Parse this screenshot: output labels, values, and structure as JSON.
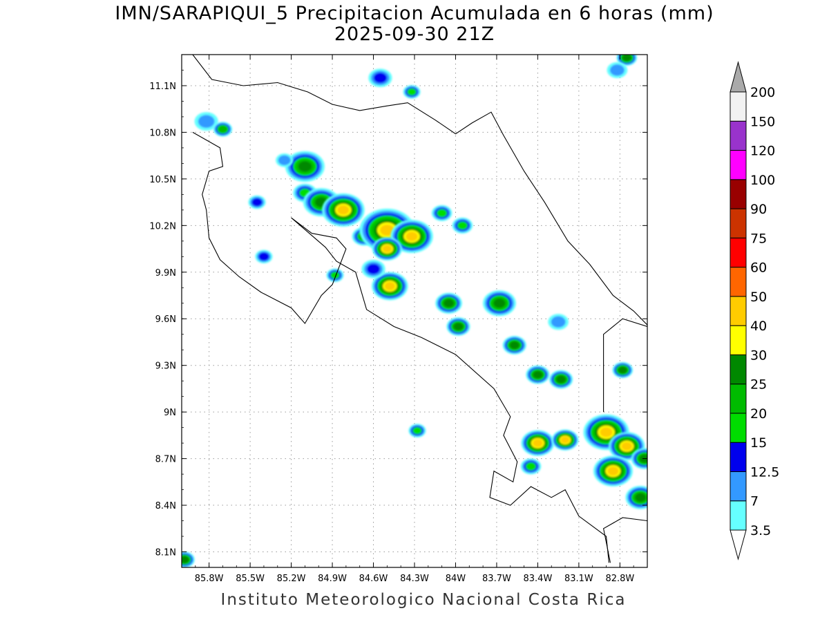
{
  "title": {
    "line1": "IMN/SARAPIQUI_5 Precipitacion Acumulada en 6 horas (mm)",
    "line2": "2025-09-30 21Z"
  },
  "footer": "Instituto Meteorologico Nacional Costa Rica",
  "map": {
    "lon_range": [
      -86.0,
      -82.6
    ],
    "lat_range": [
      8.0,
      11.3
    ],
    "x_ticks": [
      {
        "value": -85.8,
        "label": "85.8W"
      },
      {
        "value": -85.5,
        "label": "85.5W"
      },
      {
        "value": -85.2,
        "label": "85.2W"
      },
      {
        "value": -84.9,
        "label": "84.9W"
      },
      {
        "value": -84.6,
        "label": "84.6W"
      },
      {
        "value": -84.3,
        "label": "84.3W"
      },
      {
        "value": -84.0,
        "label": "84W"
      },
      {
        "value": -83.7,
        "label": "83.7W"
      },
      {
        "value": -83.4,
        "label": "83.4W"
      },
      {
        "value": -83.1,
        "label": "83.1W"
      },
      {
        "value": -82.8,
        "label": "82.8W"
      }
    ],
    "y_ticks": [
      {
        "value": 8.1,
        "label": "8.1N"
      },
      {
        "value": 8.4,
        "label": "8.4N"
      },
      {
        "value": 8.7,
        "label": "8.7N"
      },
      {
        "value": 9.0,
        "label": "9N"
      },
      {
        "value": 9.3,
        "label": "9.3N"
      },
      {
        "value": 9.6,
        "label": "9.6N"
      },
      {
        "value": 9.9,
        "label": "9.9N"
      },
      {
        "value": 10.2,
        "label": "10.2N"
      },
      {
        "value": 10.5,
        "label": "10.5N"
      },
      {
        "value": 10.8,
        "label": "10.8N"
      },
      {
        "value": 11.1,
        "label": "11.1N"
      }
    ],
    "grid": "dotted",
    "coastlines": [
      [
        [
          -85.92,
          11.3
        ],
        [
          -85.78,
          11.14
        ],
        [
          -85.55,
          11.1
        ],
        [
          -85.3,
          11.12
        ],
        [
          -85.08,
          11.06
        ],
        [
          -84.9,
          10.98
        ],
        [
          -84.7,
          10.94
        ],
        [
          -84.5,
          10.97
        ],
        [
          -84.35,
          10.99
        ],
        [
          -84.15,
          10.88
        ],
        [
          -84.0,
          10.79
        ],
        [
          -83.88,
          10.86
        ],
        [
          -83.74,
          10.93
        ],
        [
          -83.65,
          10.78
        ],
        [
          -83.5,
          10.55
        ],
        [
          -83.35,
          10.35
        ],
        [
          -83.18,
          10.1
        ],
        [
          -83.02,
          9.95
        ],
        [
          -82.85,
          9.75
        ],
        [
          -82.7,
          9.65
        ],
        [
          -82.6,
          9.56
        ]
      ],
      [
        [
          -85.92,
          10.8
        ],
        [
          -85.72,
          10.7
        ],
        [
          -85.7,
          10.58
        ],
        [
          -85.8,
          10.55
        ],
        [
          -85.85,
          10.4
        ],
        [
          -85.82,
          10.3
        ],
        [
          -85.8,
          10.12
        ],
        [
          -85.72,
          9.98
        ],
        [
          -85.58,
          9.87
        ],
        [
          -85.42,
          9.77
        ],
        [
          -85.2,
          9.67
        ],
        [
          -85.1,
          9.57
        ],
        [
          -84.98,
          9.75
        ],
        [
          -84.9,
          9.82
        ],
        [
          -84.8,
          10.05
        ],
        [
          -84.87,
          10.12
        ],
        [
          -85.05,
          10.15
        ],
        [
          -85.2,
          10.25
        ],
        [
          -84.95,
          10.06
        ],
        [
          -84.87,
          9.97
        ],
        [
          -84.73,
          9.9
        ],
        [
          -84.65,
          9.66
        ],
        [
          -84.45,
          9.55
        ],
        [
          -84.25,
          9.48
        ],
        [
          -84.0,
          9.37
        ],
        [
          -83.72,
          9.15
        ],
        [
          -83.6,
          8.97
        ],
        [
          -83.65,
          8.85
        ],
        [
          -83.55,
          8.68
        ],
        [
          -83.58,
          8.55
        ],
        [
          -83.72,
          8.62
        ],
        [
          -83.75,
          8.45
        ],
        [
          -83.6,
          8.4
        ],
        [
          -83.45,
          8.52
        ],
        [
          -83.3,
          8.45
        ],
        [
          -83.2,
          8.5
        ],
        [
          -83.1,
          8.33
        ],
        [
          -82.9,
          8.2
        ],
        [
          -82.88,
          8.03
        ]
      ],
      [
        [
          -82.87,
          8.03
        ],
        [
          -82.92,
          8.25
        ],
        [
          -82.78,
          8.32
        ],
        [
          -82.6,
          8.3
        ]
      ],
      [
        [
          -82.92,
          9.0
        ],
        [
          -82.92,
          9.5
        ],
        [
          -82.78,
          9.6
        ],
        [
          -82.6,
          9.55
        ]
      ]
    ],
    "features": [
      {
        "lon": -85.82,
        "lat": 10.87,
        "r": 0.06,
        "max_mm": 7
      },
      {
        "lon": -85.7,
        "lat": 10.82,
        "r": 0.045,
        "max_mm": 20
      },
      {
        "lon": -85.1,
        "lat": 10.58,
        "r": 0.11,
        "max_mm": 25
      },
      {
        "lon": -85.1,
        "lat": 10.41,
        "r": 0.06,
        "max_mm": 15
      },
      {
        "lon": -84.98,
        "lat": 10.35,
        "r": 0.1,
        "max_mm": 25
      },
      {
        "lon": -84.82,
        "lat": 10.3,
        "r": 0.12,
        "max_mm": 40
      },
      {
        "lon": -84.67,
        "lat": 10.13,
        "r": 0.06,
        "max_mm": 20
      },
      {
        "lon": -84.5,
        "lat": 10.17,
        "r": 0.16,
        "max_mm": 40
      },
      {
        "lon": -84.32,
        "lat": 10.13,
        "r": 0.12,
        "max_mm": 40
      },
      {
        "lon": -84.5,
        "lat": 10.05,
        "r": 0.08,
        "max_mm": 40
      },
      {
        "lon": -84.48,
        "lat": 9.81,
        "r": 0.1,
        "max_mm": 40
      },
      {
        "lon": -84.05,
        "lat": 9.7,
        "r": 0.07,
        "max_mm": 25
      },
      {
        "lon": -83.98,
        "lat": 9.55,
        "r": 0.06,
        "max_mm": 25
      },
      {
        "lon": -83.68,
        "lat": 9.7,
        "r": 0.09,
        "max_mm": 25
      },
      {
        "lon": -83.57,
        "lat": 9.43,
        "r": 0.06,
        "max_mm": 25
      },
      {
        "lon": -83.4,
        "lat": 9.24,
        "r": 0.06,
        "max_mm": 25
      },
      {
        "lon": -83.23,
        "lat": 9.21,
        "r": 0.06,
        "max_mm": 25
      },
      {
        "lon": -83.4,
        "lat": 8.8,
        "r": 0.09,
        "max_mm": 40
      },
      {
        "lon": -83.2,
        "lat": 8.82,
        "r": 0.07,
        "max_mm": 40
      },
      {
        "lon": -82.9,
        "lat": 8.87,
        "r": 0.13,
        "max_mm": 40
      },
      {
        "lon": -82.75,
        "lat": 8.78,
        "r": 0.1,
        "max_mm": 40
      },
      {
        "lon": -82.85,
        "lat": 8.62,
        "r": 0.11,
        "max_mm": 40
      },
      {
        "lon": -82.62,
        "lat": 8.7,
        "r": 0.07,
        "max_mm": 25
      },
      {
        "lon": -82.65,
        "lat": 8.45,
        "r": 0.08,
        "max_mm": 25
      },
      {
        "lon": -82.78,
        "lat": 9.27,
        "r": 0.05,
        "max_mm": 25
      },
      {
        "lon": -84.28,
        "lat": 8.88,
        "r": 0.04,
        "max_mm": 15
      },
      {
        "lon": -84.88,
        "lat": 9.88,
        "r": 0.04,
        "max_mm": 15
      },
      {
        "lon": -84.55,
        "lat": 11.15,
        "r": 0.06,
        "max_mm": 12.5
      },
      {
        "lon": -84.32,
        "lat": 11.06,
        "r": 0.04,
        "max_mm": 15
      },
      {
        "lon": -82.75,
        "lat": 11.28,
        "r": 0.05,
        "max_mm": 25
      },
      {
        "lon": -82.82,
        "lat": 11.2,
        "r": 0.05,
        "max_mm": 7
      },
      {
        "lon": -85.98,
        "lat": 8.05,
        "r": 0.05,
        "max_mm": 25
      },
      {
        "lon": -84.1,
        "lat": 10.28,
        "r": 0.05,
        "max_mm": 15
      },
      {
        "lon": -83.95,
        "lat": 10.2,
        "r": 0.05,
        "max_mm": 15
      },
      {
        "lon": -84.6,
        "lat": 9.92,
        "r": 0.06,
        "max_mm": 12.5
      },
      {
        "lon": -83.45,
        "lat": 8.65,
        "r": 0.05,
        "max_mm": 15
      },
      {
        "lon": -83.25,
        "lat": 9.58,
        "r": 0.05,
        "max_mm": 7
      },
      {
        "lon": -85.45,
        "lat": 10.35,
        "r": 0.04,
        "max_mm": 12.5
      },
      {
        "lon": -85.4,
        "lat": 10.0,
        "r": 0.04,
        "max_mm": 12.5
      },
      {
        "lon": -85.25,
        "lat": 10.62,
        "r": 0.04,
        "max_mm": 7
      }
    ]
  },
  "legend": {
    "levels": [
      "3.5",
      "7",
      "12.5",
      "15",
      "20",
      "25",
      "30",
      "40",
      "50",
      "60",
      "75",
      "90",
      "100",
      "120",
      "150",
      "200"
    ],
    "colors": [
      "#66ffff",
      "#3399ff",
      "#0000ee",
      "#00dd00",
      "#00bb00",
      "#008800",
      "#ffff00",
      "#ffcc00",
      "#ff6600",
      "#ff0000",
      "#cc3300",
      "#990000",
      "#ff00ff",
      "#9933cc",
      "#f2f2f2",
      "#aaaaaa"
    ]
  }
}
